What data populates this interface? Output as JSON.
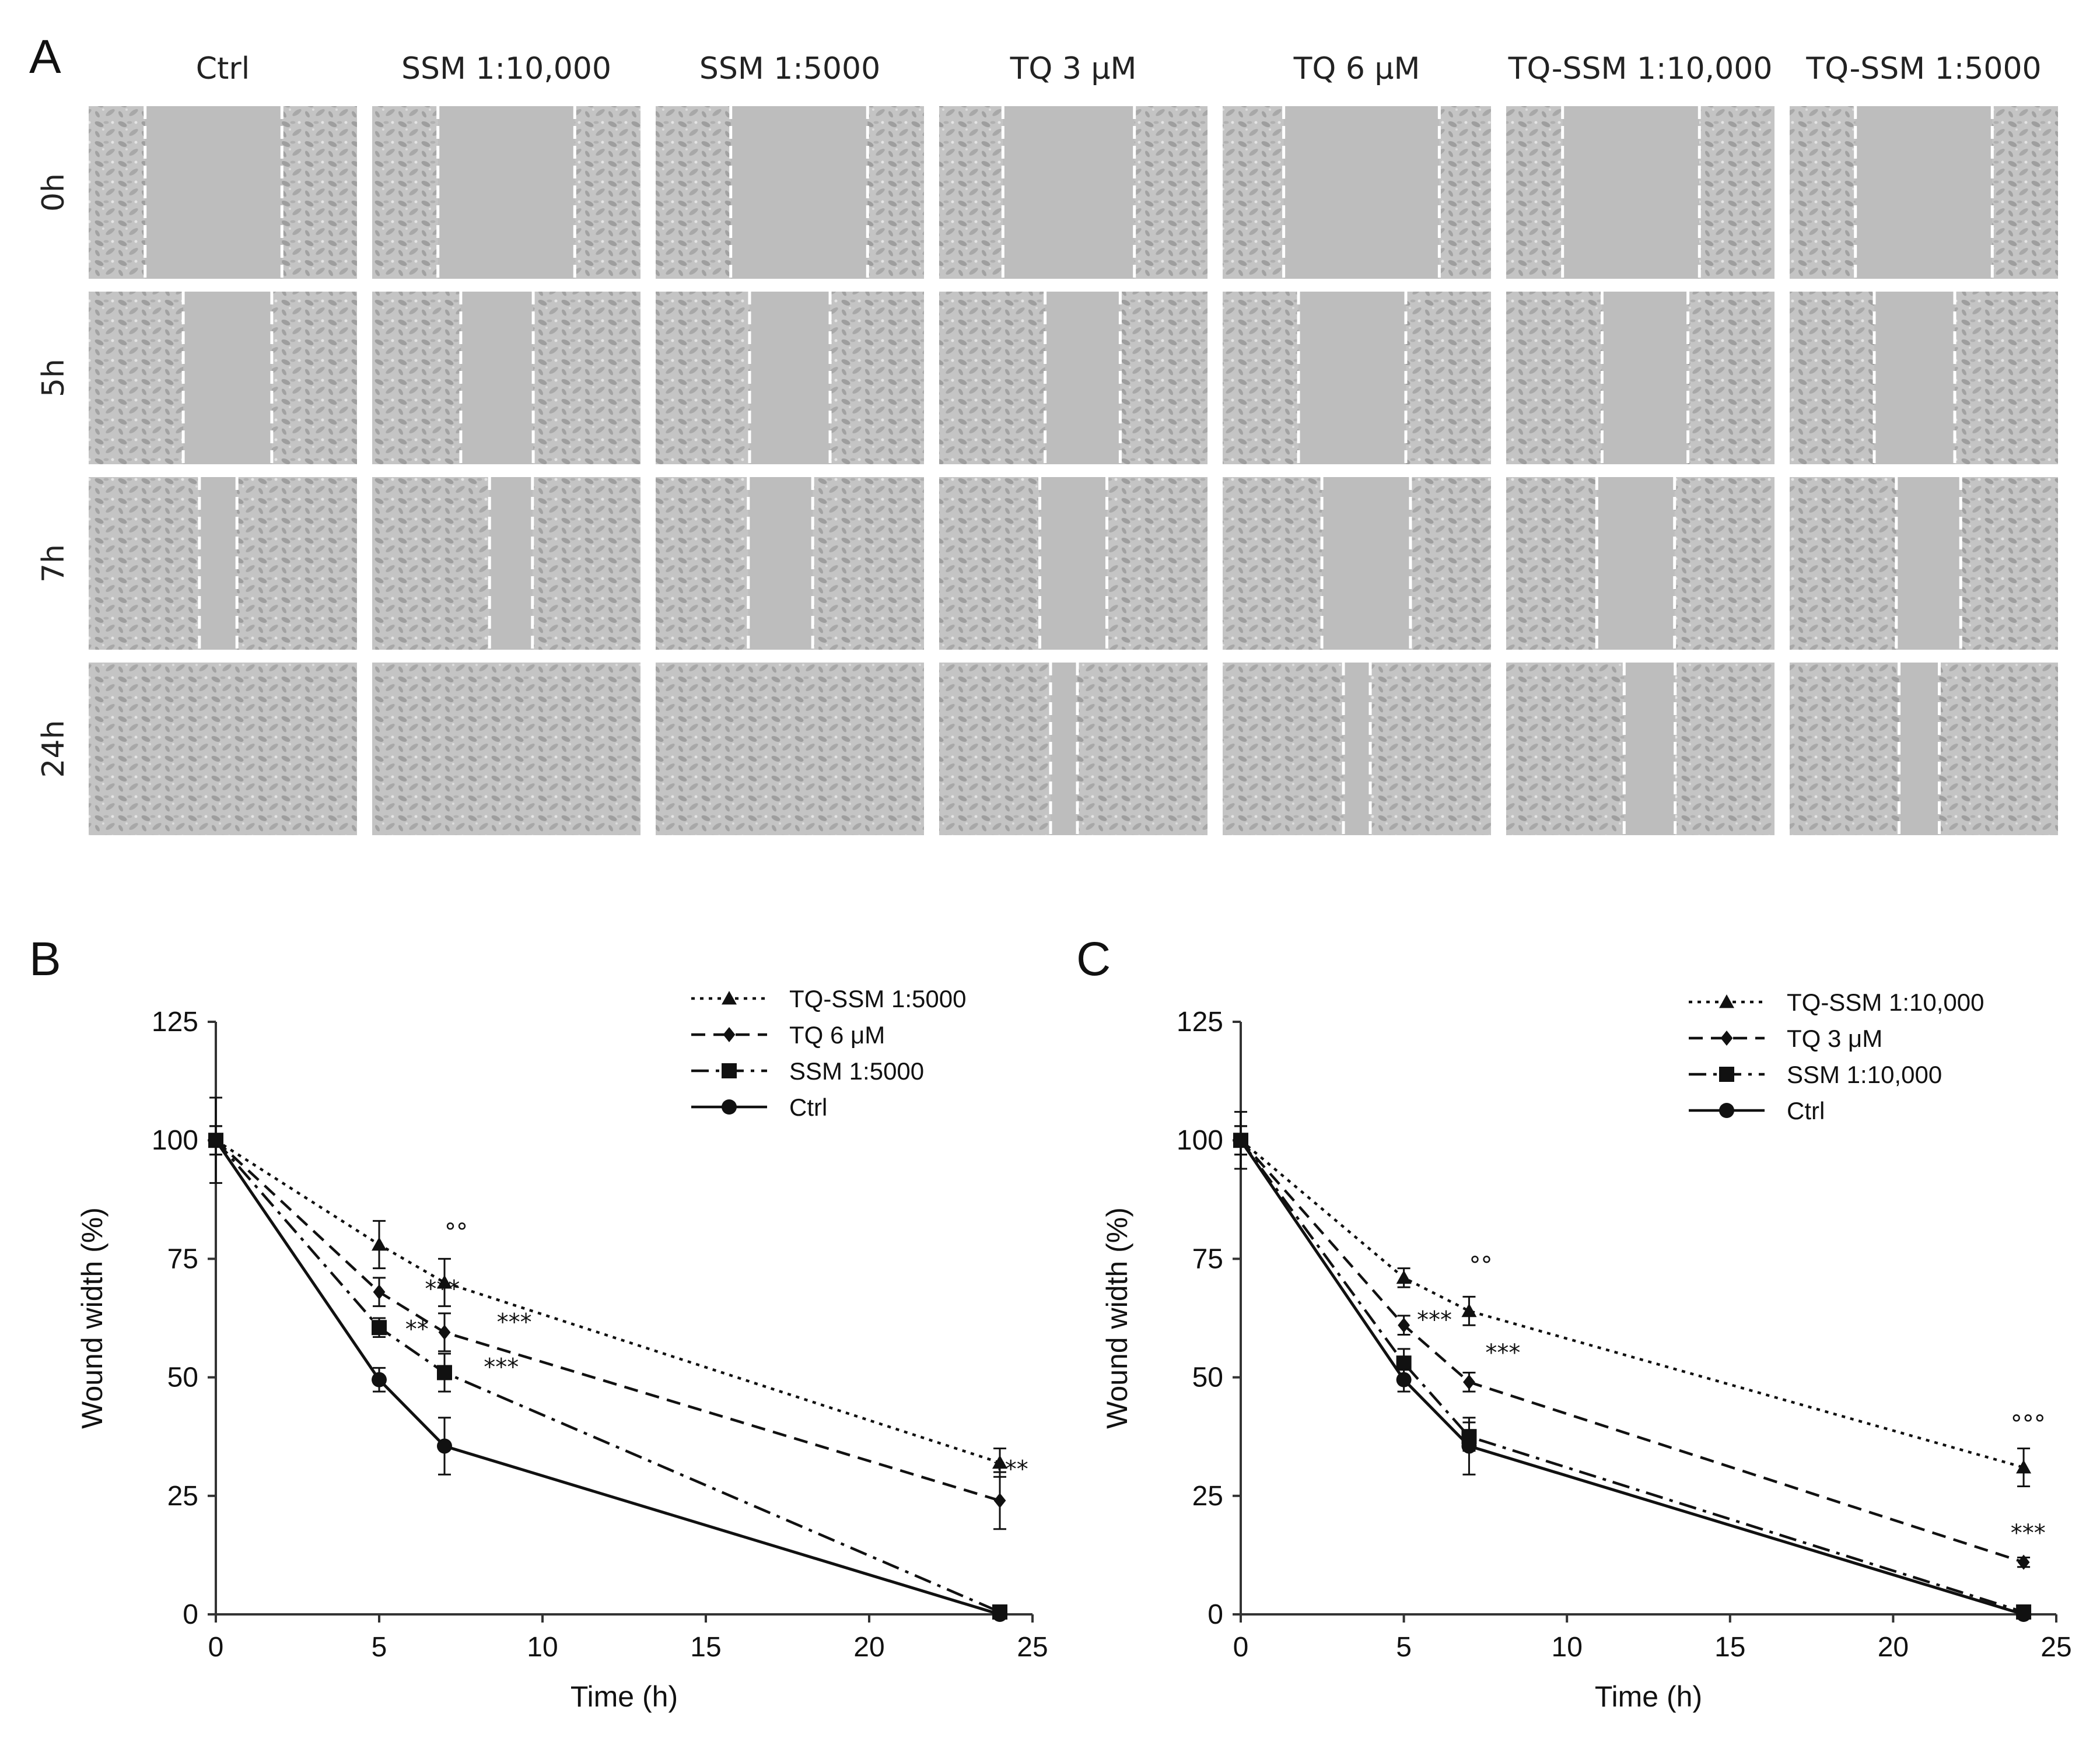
{
  "colors": {
    "micro_bg": "#c7c7c7",
    "micro_cell": "#9a9a9a",
    "micro_gap": "#bdbdbd",
    "line": "#111111"
  },
  "panel_a": {
    "letter": "A",
    "columns": [
      "Ctrl",
      "SSM 1:10,000",
      "SSM 1:5000",
      "TQ 3 μM",
      "TQ 6 μM",
      "TQ-SSM 1:10,000",
      "TQ-SSM 1:5000"
    ],
    "rows": [
      "0h",
      "5h",
      "7h",
      "24h"
    ],
    "gap_fraction": [
      [
        0.51,
        0.51,
        0.51,
        0.49,
        0.58,
        0.51,
        0.51
      ],
      [
        0.33,
        0.27,
        0.3,
        0.28,
        0.4,
        0.32,
        0.3
      ],
      [
        0.14,
        0.16,
        0.24,
        0.25,
        0.33,
        0.29,
        0.24
      ],
      [
        0.0,
        0.0,
        0.0,
        0.1,
        0.1,
        0.19,
        0.15
      ]
    ]
  },
  "chart_data": [
    {
      "type": "line",
      "panel_letter": "B",
      "xlabel": "Time (h)",
      "ylabel": "Wound width (%)",
      "xlim": [
        0,
        25
      ],
      "ylim": [
        0,
        125
      ],
      "xticks": [
        0,
        5,
        10,
        15,
        20,
        25
      ],
      "yticks": [
        0,
        25,
        50,
        75,
        100,
        125
      ],
      "legend_position": "top-right",
      "x": [
        0,
        5,
        7,
        24
      ],
      "series": [
        {
          "name": "TQ-SSM 1:5000",
          "dash": "dotted",
          "marker": "triangle",
          "values": [
            100,
            78,
            70,
            32
          ],
          "errors": [
            3,
            5,
            5,
            3
          ]
        },
        {
          "name": "TQ 6 μM",
          "dash": "dashed",
          "marker": "diamond",
          "values": [
            100,
            68,
            59.5,
            24
          ],
          "errors": [
            3,
            3,
            4,
            6
          ]
        },
        {
          "name": "SSM 1:5000",
          "dash": "dashdot",
          "marker": "square",
          "values": [
            100,
            60.5,
            51,
            0.5
          ],
          "errors": [
            3,
            2,
            4,
            0.5
          ]
        },
        {
          "name": "Ctrl",
          "dash": "solid",
          "marker": "circle",
          "values": [
            100,
            49.5,
            35.5,
            0
          ],
          "errors": [
            9,
            2.5,
            6,
            0.5
          ]
        }
      ],
      "annotations": [
        {
          "text": "°°",
          "x": 7,
          "y": 79
        },
        {
          "text": "***",
          "x": 6.4,
          "y": 67
        },
        {
          "text": "***",
          "x": 8.6,
          "y": 60
        },
        {
          "text": "**",
          "x": 5.8,
          "y": 58.5
        },
        {
          "text": "***",
          "x": 8.2,
          "y": 50.5
        },
        {
          "text": "***",
          "x": 23.8,
          "y": 29
        }
      ]
    },
    {
      "type": "line",
      "panel_letter": "C",
      "xlabel": "Time (h)",
      "ylabel": "Wound width (%)",
      "xlim": [
        0,
        25
      ],
      "ylim": [
        0,
        125
      ],
      "xticks": [
        0,
        5,
        10,
        15,
        20,
        25
      ],
      "yticks": [
        0,
        25,
        50,
        75,
        100,
        125
      ],
      "legend_position": "top-right",
      "x": [
        0,
        5,
        7,
        24
      ],
      "series": [
        {
          "name": "TQ-SSM 1:10,000",
          "dash": "dotted",
          "marker": "triangle",
          "values": [
            100,
            71,
            64,
            31
          ],
          "errors": [
            3,
            2,
            3,
            4
          ]
        },
        {
          "name": "TQ 3 μM",
          "dash": "dashed",
          "marker": "diamond",
          "values": [
            100,
            61,
            49,
            11
          ],
          "errors": [
            3,
            2,
            2,
            1
          ]
        },
        {
          "name": "SSM 1:10,000",
          "dash": "dashdot",
          "marker": "square",
          "values": [
            100,
            53,
            37.5,
            0.5
          ],
          "errors": [
            3,
            3,
            3,
            0.5
          ]
        },
        {
          "name": "Ctrl",
          "dash": "solid",
          "marker": "circle",
          "values": [
            100,
            49.5,
            35.5,
            0
          ],
          "errors": [
            6,
            2.5,
            6,
            0.5
          ]
        }
      ],
      "annotations": [
        {
          "text": "°°",
          "x": 7,
          "y": 72
        },
        {
          "text": "***",
          "x": 5.4,
          "y": 60.5
        },
        {
          "text": "***",
          "x": 7.5,
          "y": 53.5
        },
        {
          "text": "°°°",
          "x": 23.6,
          "y": 38.5
        },
        {
          "text": "***",
          "x": 23.6,
          "y": 15.5
        }
      ]
    }
  ]
}
